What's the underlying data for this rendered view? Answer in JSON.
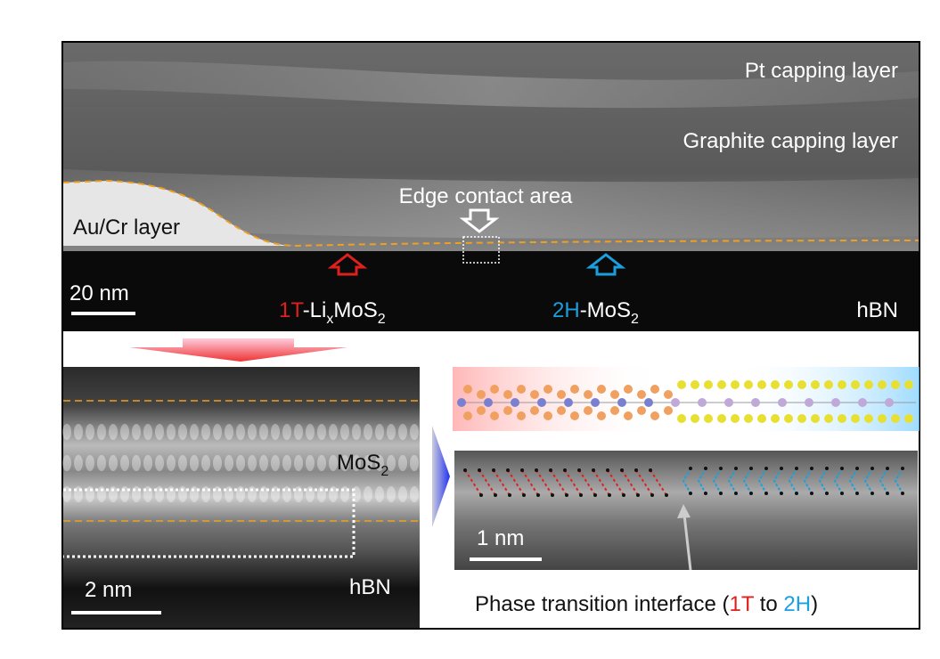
{
  "top_panel": {
    "pt_label": "Pt capping layer",
    "graphite_label": "Graphite capping layer",
    "edge_label": "Edge contact area",
    "aucr_label": "Au/Cr layer",
    "scale_bar": "20 nm",
    "hbn_label": "hBN",
    "phase_1t": {
      "prefix": "1T",
      "main": "-Li",
      "sub_x": "x",
      "main2": "MoS",
      "sub_2": "2"
    },
    "phase_2h": {
      "prefix": "2H",
      "main": "-MoS",
      "sub_2": "2"
    }
  },
  "bottom_left": {
    "mos2_main": "MoS",
    "mos2_sub": "2",
    "hbn_label": "hBN",
    "scale_bar": "2 nm"
  },
  "bottom_right": {
    "scale_bar": "1 nm",
    "caption": {
      "start": "Phase transition interface (",
      "t1": "1T",
      "mid": " to ",
      "t2": "2H",
      "end": ")"
    }
  }
}
